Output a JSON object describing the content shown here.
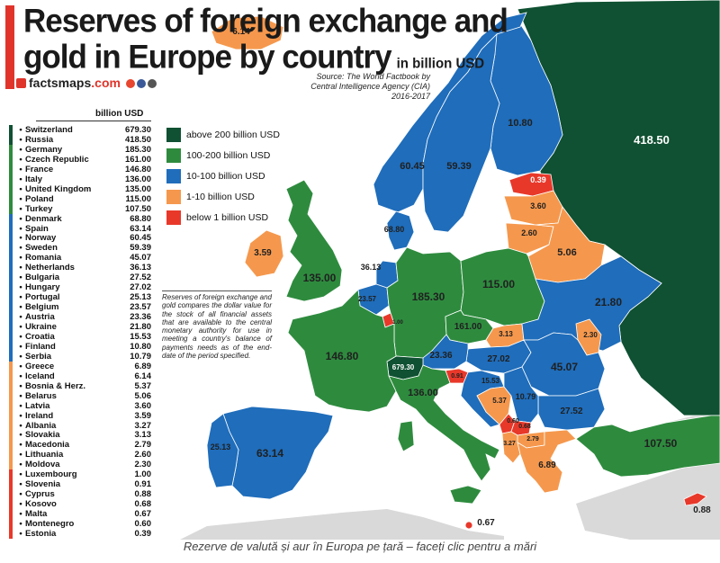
{
  "header": {
    "title_line1": "Reserves of foreign exchange and",
    "title_line2": "gold in Europe by country",
    "title_unit": "in billion USD",
    "brand_name": "factsmaps",
    "brand_tld": ".com",
    "source_line1": "Source: The World Factbook by",
    "source_line2": "Central Intelligence Agency (CIA)",
    "source_line3": "2016-2017"
  },
  "colors": {
    "above200": "#0f5132",
    "c100_200": "#2e8b3e",
    "c10_100": "#1f6dbb",
    "c1_10": "#f5984d",
    "below1": "#e8382a",
    "sea": "#ffffff",
    "non_europe": "#d9d9d9",
    "accent": "#e0342b"
  },
  "legend_header": "billion USD",
  "countries": [
    {
      "name": "Switzerland",
      "value": "679.30",
      "group": "above200"
    },
    {
      "name": "Russia",
      "value": "418.50",
      "group": "above200"
    },
    {
      "name": "Germany",
      "value": "185.30",
      "group": "c100_200"
    },
    {
      "name": "Czech Republic",
      "value": "161.00",
      "group": "c100_200"
    },
    {
      "name": "France",
      "value": "146.80",
      "group": "c100_200"
    },
    {
      "name": "Italy",
      "value": "136.00",
      "group": "c100_200"
    },
    {
      "name": "United Kingdom",
      "value": "135.00",
      "group": "c100_200"
    },
    {
      "name": "Poland",
      "value": "115.00",
      "group": "c100_200"
    },
    {
      "name": "Turkey",
      "value": "107.50",
      "group": "c100_200"
    },
    {
      "name": "Denmark",
      "value": "68.80",
      "group": "c10_100"
    },
    {
      "name": "Spain",
      "value": "63.14",
      "group": "c10_100"
    },
    {
      "name": "Norway",
      "value": "60.45",
      "group": "c10_100"
    },
    {
      "name": "Sweden",
      "value": "59.39",
      "group": "c10_100"
    },
    {
      "name": "Romania",
      "value": "45.07",
      "group": "c10_100"
    },
    {
      "name": "Netherlands",
      "value": "36.13",
      "group": "c10_100"
    },
    {
      "name": "Bulgaria",
      "value": "27.52",
      "group": "c10_100"
    },
    {
      "name": "Hungary",
      "value": "27.02",
      "group": "c10_100"
    },
    {
      "name": "Portugal",
      "value": "25.13",
      "group": "c10_100"
    },
    {
      "name": "Belgium",
      "value": "23.57",
      "group": "c10_100"
    },
    {
      "name": "Austria",
      "value": "23.36",
      "group": "c10_100"
    },
    {
      "name": "Ukraine",
      "value": "21.80",
      "group": "c10_100"
    },
    {
      "name": "Croatia",
      "value": "15.53",
      "group": "c10_100"
    },
    {
      "name": "Finland",
      "value": "10.80",
      "group": "c10_100"
    },
    {
      "name": "Serbia",
      "value": "10.79",
      "group": "c10_100"
    },
    {
      "name": "Greece",
      "value": "6.89",
      "group": "c1_10"
    },
    {
      "name": "Iceland",
      "value": "6.14",
      "group": "c1_10"
    },
    {
      "name": "Bosnia & Herz.",
      "value": "5.37",
      "group": "c1_10"
    },
    {
      "name": "Belarus",
      "value": "5.06",
      "group": "c1_10"
    },
    {
      "name": "Latvia",
      "value": "3.60",
      "group": "c1_10"
    },
    {
      "name": "Ireland",
      "value": "3.59",
      "group": "c1_10"
    },
    {
      "name": "Albania",
      "value": "3.27",
      "group": "c1_10"
    },
    {
      "name": "Slovakia",
      "value": "3.13",
      "group": "c1_10"
    },
    {
      "name": "Macedonia",
      "value": "2.79",
      "group": "c1_10"
    },
    {
      "name": "Lithuania",
      "value": "2.60",
      "group": "c1_10"
    },
    {
      "name": "Moldova",
      "value": "2.30",
      "group": "c1_10"
    },
    {
      "name": "Luxembourg",
      "value": "1.00",
      "group": "below1"
    },
    {
      "name": "Slovenia",
      "value": "0.91",
      "group": "below1"
    },
    {
      "name": "Cyprus",
      "value": "0.88",
      "group": "below1"
    },
    {
      "name": "Kosovo",
      "value": "0.68",
      "group": "below1"
    },
    {
      "name": "Malta",
      "value": "0.67",
      "group": "below1"
    },
    {
      "name": "Montenegro",
      "value": "0.60",
      "group": "below1"
    },
    {
      "name": "Estonia",
      "value": "0.39",
      "group": "below1"
    }
  ],
  "categories": [
    {
      "key": "above200",
      "label": "above 200 billion USD"
    },
    {
      "key": "c100_200",
      "label": "100-200 billion USD"
    },
    {
      "key": "c10_100",
      "label": "10-100 billion USD"
    },
    {
      "key": "c1_10",
      "label": "1-10 billion USD"
    },
    {
      "key": "below1",
      "label": "below 1 billion USD"
    }
  ],
  "description": "Reserves of foreign exchange and gold compares the dollar value for the stock of all financial assets that are available to the central monetary authority for use in meeting a country's balance of payments needs as of the end-date of the period specified.",
  "caption": "Rezerve de valută și aur în Europa pe țară – faceți clic pentru a mări"
}
